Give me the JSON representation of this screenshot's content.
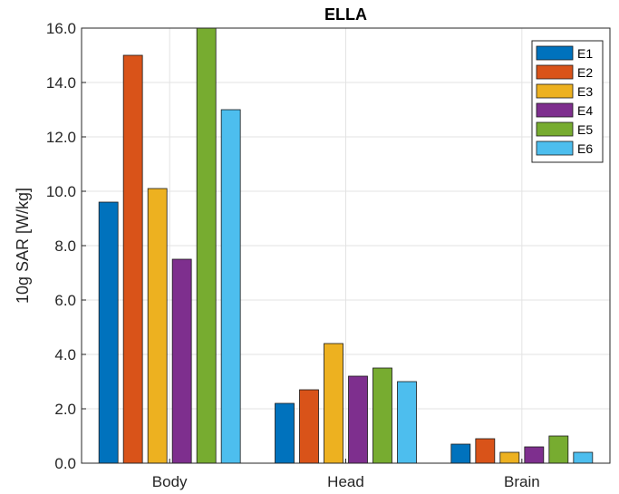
{
  "chart_data": {
    "type": "bar",
    "title": "ELLA",
    "xlabel": "",
    "ylabel": "10g SAR [W/kg]",
    "categories": [
      "Body",
      "Head",
      "Brain"
    ],
    "ylim": [
      0,
      16
    ],
    "yticks": [
      "0.0",
      "2.0",
      "4.0",
      "6.0",
      "8.0",
      "10.0",
      "12.0",
      "14.0",
      "16.0"
    ],
    "grid": true,
    "legend_position": "top-right",
    "series": [
      {
        "name": "E1",
        "color": "#0072BD",
        "values": [
          9.6,
          2.2,
          0.7
        ]
      },
      {
        "name": "E2",
        "color": "#D95319",
        "values": [
          15.0,
          2.7,
          0.9
        ]
      },
      {
        "name": "E3",
        "color": "#EDB120",
        "values": [
          10.1,
          4.4,
          0.4
        ]
      },
      {
        "name": "E4",
        "color": "#7E2F8E",
        "values": [
          7.5,
          3.2,
          0.6
        ]
      },
      {
        "name": "E5",
        "color": "#77AC30",
        "values": [
          16.0,
          3.5,
          1.0
        ]
      },
      {
        "name": "E6",
        "color": "#4DBEEE",
        "values": [
          13.0,
          3.0,
          0.4
        ]
      }
    ]
  }
}
